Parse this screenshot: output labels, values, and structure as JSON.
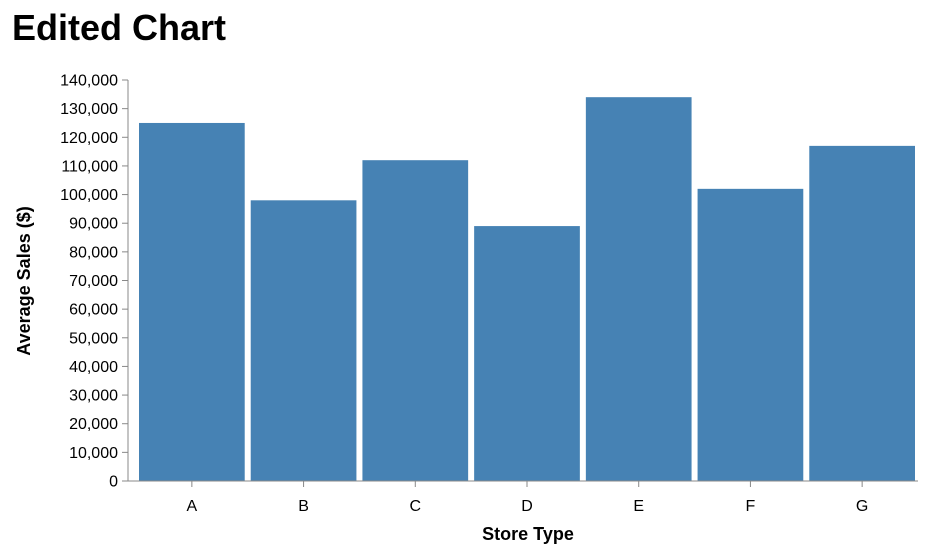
{
  "chart_data": {
    "type": "bar",
    "title": "Edited Chart",
    "xlabel": "Store Type",
    "ylabel": "Average Sales ($)",
    "categories": [
      "A",
      "B",
      "C",
      "D",
      "E",
      "F",
      "G"
    ],
    "values": [
      125000,
      98000,
      112000,
      89000,
      134000,
      102000,
      117000
    ],
    "ylim": [
      0,
      140000
    ],
    "yticks": [
      0,
      10000,
      20000,
      30000,
      40000,
      50000,
      60000,
      70000,
      80000,
      90000,
      100000,
      110000,
      120000,
      130000,
      140000
    ],
    "ytick_labels": [
      "0",
      "10,000",
      "20,000",
      "30,000",
      "40,000",
      "50,000",
      "60,000",
      "70,000",
      "80,000",
      "90,000",
      "100,000",
      "110,000",
      "120,000",
      "130,000",
      "140,000"
    ],
    "grid": false,
    "colors": {
      "bar": "#4682b4",
      "axis": "#888888",
      "text": "#000000"
    }
  }
}
